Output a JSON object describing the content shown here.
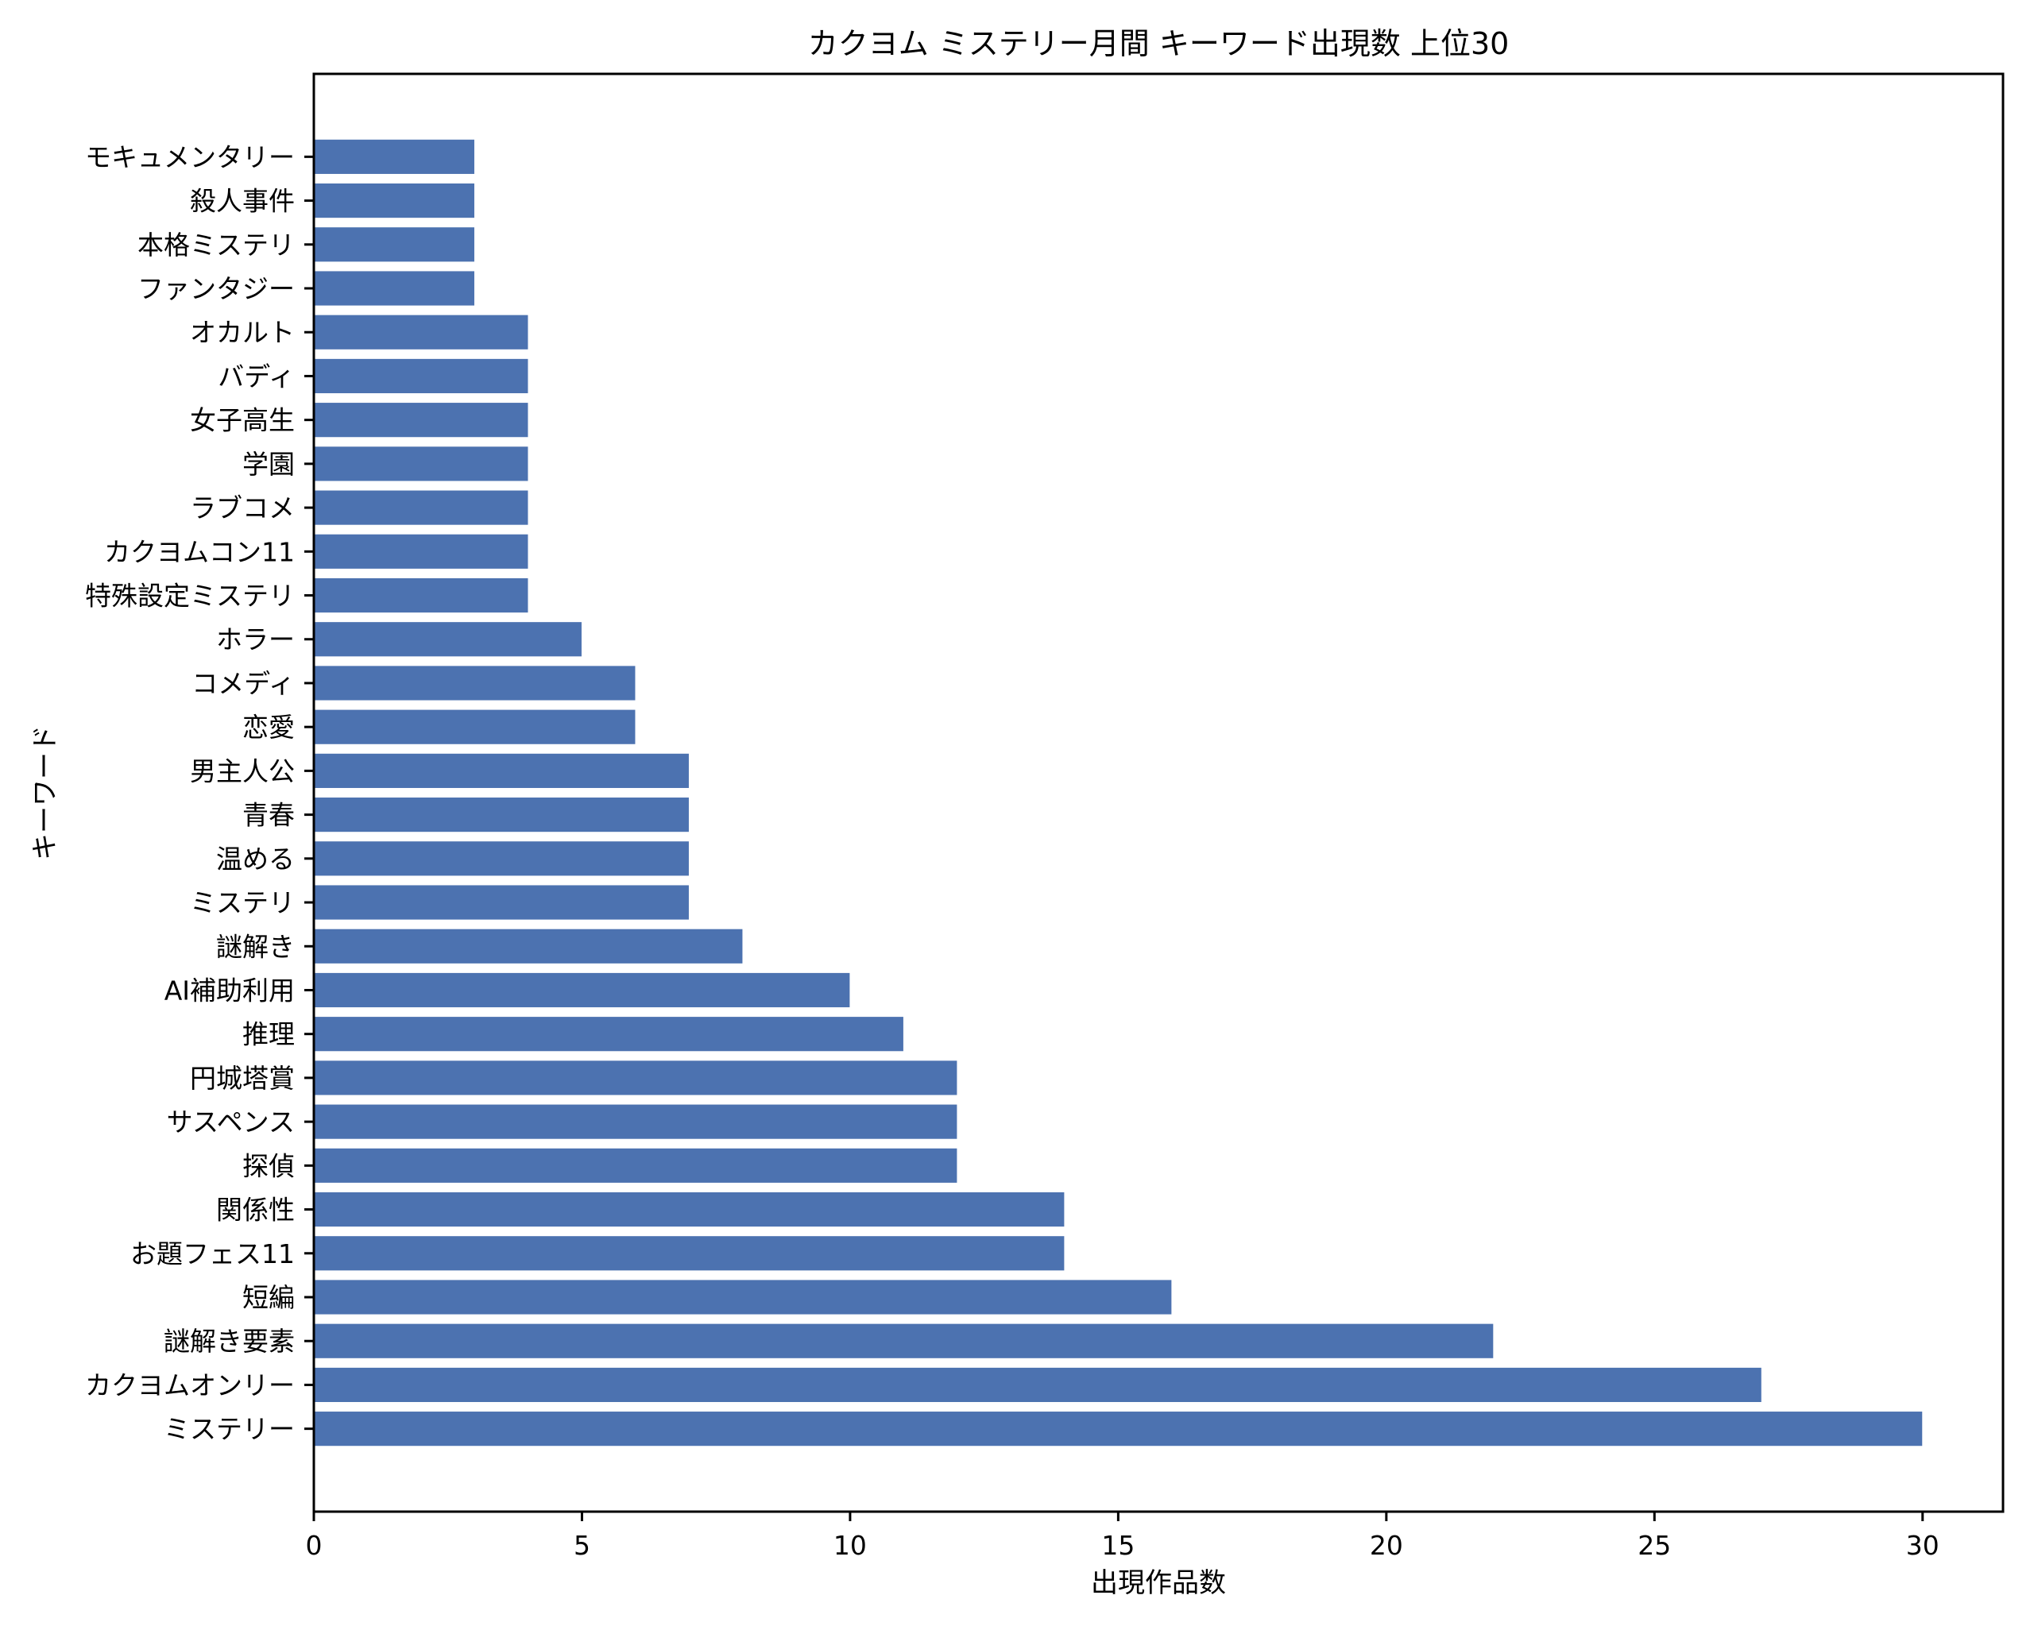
{
  "chart_data": {
    "type": "bar",
    "orientation": "horizontal",
    "title": "カクヨム ミステリー月間 キーワード出現数 上位30",
    "xlabel": "出現作品数",
    "ylabel": "キーワード",
    "categories": [
      "ミステリー",
      "カクヨムオンリー",
      "謎解き要素",
      "短編",
      "お題フェス11",
      "関係性",
      "探偵",
      "サスペンス",
      "円城塔賞",
      "推理",
      "AI補助利用",
      "謎解き",
      "ミステリ",
      "温める",
      "青春",
      "男主人公",
      "恋愛",
      "コメディ",
      "ホラー",
      "特殊設定ミステリ",
      "カクヨムコン11",
      "ラブコメ",
      "学園",
      "女子高生",
      "バディ",
      "オカルト",
      "ファンタジー",
      "本格ミステリ",
      "殺人事件",
      "モキュメンタリー"
    ],
    "values": [
      30,
      27,
      22,
      16,
      14,
      14,
      12,
      12,
      12,
      11,
      10,
      8,
      7,
      7,
      7,
      7,
      6,
      6,
      5,
      4,
      4,
      4,
      4,
      4,
      4,
      4,
      3,
      3,
      3,
      3
    ],
    "xlim": [
      0,
      31.5
    ],
    "xticks": [
      0,
      5,
      10,
      15,
      20,
      25,
      30
    ],
    "order_note_bottom_to_top": true,
    "grid": false,
    "legend": null,
    "colors": {
      "bar": "#4C72B0",
      "bar_edge": "#ffffff",
      "axes": "#000000",
      "background": "#ffffff"
    }
  }
}
